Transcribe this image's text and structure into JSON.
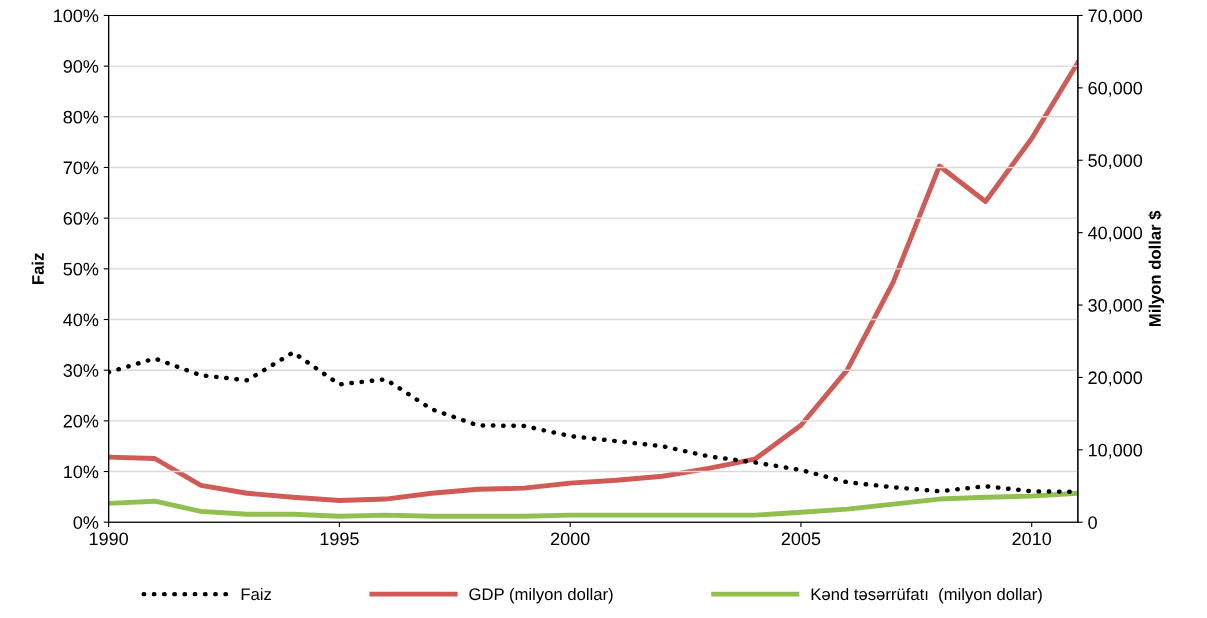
{
  "chart_data": {
    "type": "line",
    "ylabel": "Faiz",
    "y2label": "Milyon dollar $",
    "x": [
      1990,
      1991,
      1992,
      1993,
      1994,
      1995,
      1996,
      1997,
      1998,
      1999,
      2000,
      2001,
      2002,
      2003,
      2004,
      2005,
      2006,
      2007,
      2008,
      2009,
      2010,
      2011
    ],
    "series": [
      {
        "name": "Faiz",
        "color": "#000000",
        "line_style": "dotted",
        "values": [
          29.6,
          32.3,
          29,
          28,
          33.5,
          27.2,
          28.2,
          22.3,
          19.1,
          19,
          17,
          16,
          15,
          13,
          11.8,
          10.3,
          7.9,
          6.9,
          6.1,
          7.1,
          6.1,
          6
        ]
      },
      {
        "name": "GDP (milyon dollar)",
        "color": "#d05a55",
        "axis": "y2",
        "line_style": "solid",
        "values": [
          9000,
          8800,
          5100,
          4000,
          3450,
          3000,
          3200,
          4000,
          4550,
          4700,
          5400,
          5800,
          6350,
          7450,
          8700,
          13400,
          21000,
          33150,
          49200,
          44300,
          53000,
          63500
        ]
      },
      {
        "name": "Kənd təsərrüfatı  (milyon dollar)",
        "color": "#92c050",
        "axis": "y2",
        "line_style": "solid",
        "values": [
          2600,
          2900,
          1500,
          1100,
          1100,
          830,
          970,
          830,
          830,
          830,
          970,
          970,
          970,
          970,
          970,
          1380,
          1800,
          2500,
          3200,
          3450,
          3600,
          4000
        ]
      }
    ],
    "xlim": [
      1990,
      2011
    ],
    "xticks": [
      1990,
      1995,
      2000,
      2005,
      2010
    ],
    "ylim": [
      0,
      100
    ],
    "yticks": [
      {
        "value": 0,
        "label": "0%"
      },
      {
        "value": 10,
        "label": "10%"
      },
      {
        "value": 20,
        "label": "20%"
      },
      {
        "value": 30,
        "label": "30%"
      },
      {
        "value": 40,
        "label": "40%"
      },
      {
        "value": 50,
        "label": "50%"
      },
      {
        "value": 60,
        "label": "60%"
      },
      {
        "value": 70,
        "label": "70%"
      },
      {
        "value": 80,
        "label": "80%"
      },
      {
        "value": 90,
        "label": "90%"
      },
      {
        "value": 100,
        "label": "100%"
      }
    ],
    "y2lim": [
      0,
      70000
    ],
    "y2ticks": [
      0,
      {
        "value": 10000,
        "label": "10,000"
      },
      {
        "value": 20000,
        "label": "20,000"
      },
      {
        "value": 30000,
        "label": "30,000"
      },
      {
        "value": 40000,
        "label": "40,000"
      },
      {
        "value": 50000,
        "label": "50,000"
      },
      {
        "value": 60000,
        "label": "60,000"
      },
      {
        "value": 70000,
        "label": "70,000"
      }
    ],
    "grid": "y",
    "legend": "bottom",
    "marker": "none"
  }
}
